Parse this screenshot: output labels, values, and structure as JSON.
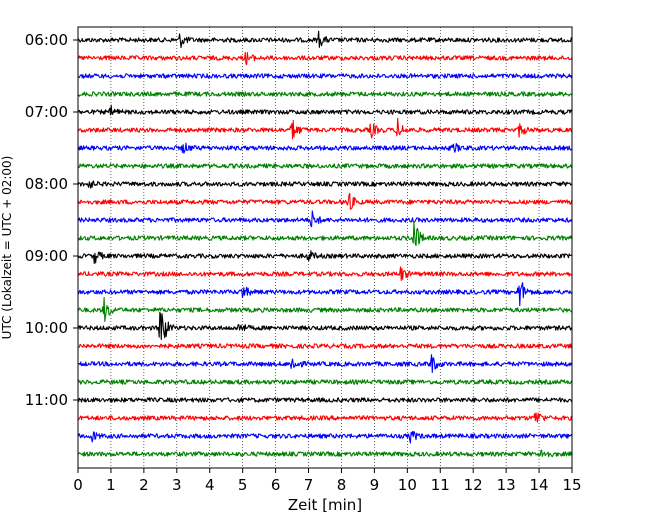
{
  "chart_data": {
    "type": "line",
    "xlabel": "Zeit  [min]",
    "ylabel": "UTC (Lokalzeit = UTC + 02:00)",
    "xlim": [
      0,
      15
    ],
    "x_ticks": [
      "0",
      "1",
      "2",
      "3",
      "4",
      "5",
      "6",
      "7",
      "8",
      "9",
      "10",
      "11",
      "12",
      "13",
      "14",
      "15"
    ],
    "y_ticks": [
      "06:00",
      "07:00",
      "08:00",
      "09:00",
      "10:00",
      "11:00"
    ],
    "y_tick_rows": [
      0,
      4,
      8,
      12,
      16,
      20
    ],
    "grid": "vertical dotted",
    "trace_colors": [
      "#000000",
      "#ff0000",
      "#0000ff",
      "#008000"
    ],
    "rows": [
      {
        "start": "06:00",
        "events": [
          {
            "t": 3.1,
            "amp": 0.45
          },
          {
            "t": 7.3,
            "amp": 0.5
          }
        ]
      },
      {
        "start": "06:15",
        "events": [
          {
            "t": 5.1,
            "amp": 0.4
          }
        ]
      },
      {
        "start": "06:30",
        "events": []
      },
      {
        "start": "06:45",
        "events": []
      },
      {
        "start": "07:00",
        "events": [
          {
            "t": 1.0,
            "amp": 0.3
          }
        ]
      },
      {
        "start": "07:15",
        "events": [
          {
            "t": 6.5,
            "amp": 0.7
          },
          {
            "t": 8.9,
            "amp": 0.45
          },
          {
            "t": 9.7,
            "amp": 0.65
          },
          {
            "t": 13.4,
            "amp": 0.4
          }
        ]
      },
      {
        "start": "07:30",
        "events": [
          {
            "t": 3.2,
            "amp": 0.35
          },
          {
            "t": 11.4,
            "amp": 0.3
          }
        ]
      },
      {
        "start": "07:45",
        "events": []
      },
      {
        "start": "08:00",
        "events": [
          {
            "t": 0.3,
            "amp": 0.3
          }
        ]
      },
      {
        "start": "08:15",
        "events": [
          {
            "t": 8.2,
            "amp": 0.7
          }
        ]
      },
      {
        "start": "08:30",
        "events": [
          {
            "t": 7.1,
            "amp": 0.55
          }
        ]
      },
      {
        "start": "08:45",
        "events": [
          {
            "t": 10.2,
            "amp": 1.2
          }
        ]
      },
      {
        "start": "09:00",
        "events": [
          {
            "t": 0.5,
            "amp": 0.45
          },
          {
            "t": 7.0,
            "amp": 0.35
          }
        ]
      },
      {
        "start": "09:15",
        "events": [
          {
            "t": 9.8,
            "amp": 0.45
          }
        ]
      },
      {
        "start": "09:30",
        "events": [
          {
            "t": 5.0,
            "amp": 0.45
          },
          {
            "t": 13.4,
            "amp": 1.1
          }
        ]
      },
      {
        "start": "09:45",
        "events": [
          {
            "t": 0.8,
            "amp": 0.75
          }
        ]
      },
      {
        "start": "10:00",
        "events": [
          {
            "t": 2.5,
            "amp": 1.9
          },
          {
            "t": 4.9,
            "amp": 0.35
          }
        ]
      },
      {
        "start": "10:15",
        "events": []
      },
      {
        "start": "10:30",
        "events": [
          {
            "t": 6.5,
            "amp": 0.5
          },
          {
            "t": 10.7,
            "amp": 0.75
          }
        ]
      },
      {
        "start": "10:45",
        "events": []
      },
      {
        "start": "11:00",
        "events": []
      },
      {
        "start": "11:15",
        "events": [
          {
            "t": 13.9,
            "amp": 0.5
          }
        ]
      },
      {
        "start": "11:30",
        "events": [
          {
            "t": 0.4,
            "amp": 0.35
          },
          {
            "t": 10.1,
            "amp": 0.4
          }
        ]
      },
      {
        "start": "11:45",
        "events": [
          {
            "t": 14.1,
            "amp": 0.4
          }
        ]
      }
    ]
  }
}
